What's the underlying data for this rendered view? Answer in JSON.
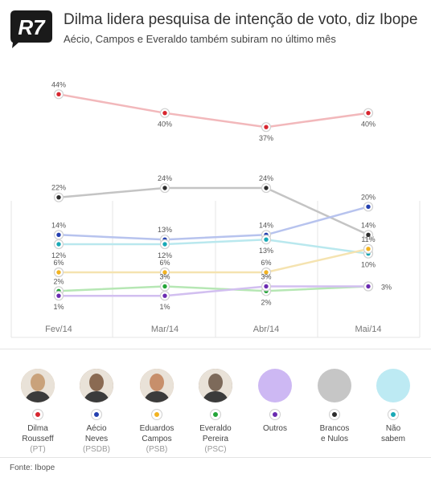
{
  "header": {
    "logo_text": "R7",
    "title": "Dilma lidera pesquisa de intenção de voto, diz Ibope",
    "subtitle": "Aécio, Campos e Everaldo também subiram no último mês"
  },
  "chart_data": {
    "type": "line",
    "categories": [
      "Fev/14",
      "Mar/14",
      "Abr/14",
      "Mai/14"
    ],
    "ylim": [
      0,
      48
    ],
    "grid": true,
    "series": [
      {
        "name": "Dilma Rousseff",
        "color": "#d7262f",
        "line_color": "#f2b8bb",
        "values": [
          44,
          40,
          37,
          40
        ]
      },
      {
        "name": "Brancos e Nulos",
        "color": "#2d2d2d",
        "line_color": "#c4c4c4",
        "values": [
          22,
          24,
          24,
          14
        ]
      },
      {
        "name": "Aécio Neves",
        "color": "#2440b0",
        "line_color": "#b7c3ee",
        "values": [
          14,
          13,
          14,
          20
        ]
      },
      {
        "name": "Não sabem",
        "color": "#19a9b6",
        "line_color": "#b9e8ee",
        "values": [
          12,
          12,
          13,
          10
        ]
      },
      {
        "name": "Eduardos Campos",
        "color": "#f2b321",
        "line_color": "#f5e3b0",
        "values": [
          6,
          6,
          6,
          11
        ]
      },
      {
        "name": "Everaldo Pereira",
        "color": "#24a538",
        "line_color": "#b6e7b4",
        "values": [
          2,
          3,
          2,
          3
        ]
      },
      {
        "name": "Outros",
        "color": "#6b2bb1",
        "line_color": "#d2bff0",
        "values": [
          1,
          1,
          3,
          3
        ]
      }
    ],
    "labels": [
      [
        "44%",
        "40%",
        "37%",
        "40%"
      ],
      [
        "22%",
        "24%",
        "24%",
        "14%"
      ],
      [
        "14%",
        "13%",
        "14%",
        "20%"
      ],
      [
        "12%",
        "12%",
        "13%",
        "10%"
      ],
      [
        "6%",
        "6%",
        "6%",
        "11%"
      ],
      [
        "2%",
        "3%",
        "2%",
        "3%"
      ],
      [
        "1%",
        "1%",
        "3%",
        ""
      ]
    ]
  },
  "legend": [
    {
      "name": "Dilma\nRousseff",
      "party": "(PT)",
      "color": "#d7262f",
      "circle": "#c9a27b",
      "icon": "dilma-photo"
    },
    {
      "name": "Aécio\nNeves",
      "party": "(PSDB)",
      "color": "#2440b0",
      "circle": "#8a6a52",
      "icon": "aecio-photo"
    },
    {
      "name": "Eduardos\nCampos",
      "party": "(PSB)",
      "color": "#f2b321",
      "circle": "#c78f6b",
      "icon": "campos-photo"
    },
    {
      "name": "Everaldo\nPereira",
      "party": "(PSC)",
      "color": "#24a538",
      "circle": "#7d6a5a",
      "icon": "everaldo-photo"
    },
    {
      "name": "Outros",
      "party": "",
      "color": "#6b2bb1",
      "circle": "#cdb8f3",
      "icon": ""
    },
    {
      "name": "Brancos\ne Nulos",
      "party": "",
      "color": "#2d2d2d",
      "circle": "#c6c6c6",
      "icon": ""
    },
    {
      "name": "Não\nsabem",
      "party": "",
      "color": "#19a9b6",
      "circle": "#bdeaf3",
      "icon": ""
    }
  ],
  "source": "Fonte: Ibope"
}
